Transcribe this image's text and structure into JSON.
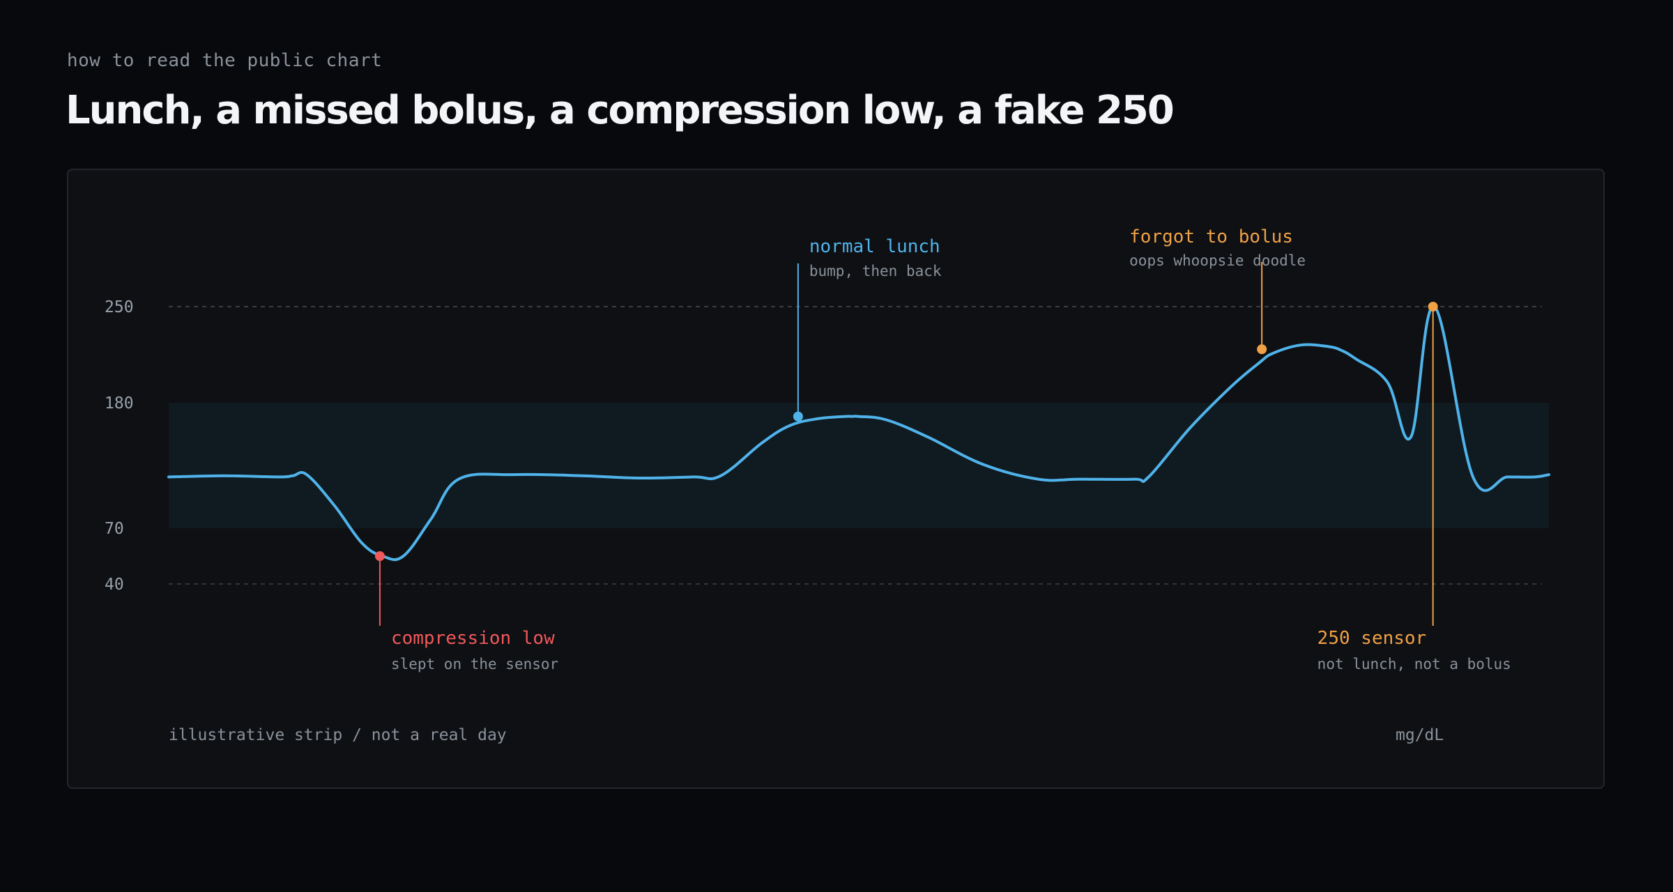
{
  "header": {
    "eyebrow": "how to read the public chart",
    "title": "Lunch, a missed bolus, a compression low, a fake 250"
  },
  "footer": {
    "note": "illustrative strip / not a real day",
    "unit": "mg/dL"
  },
  "colors": {
    "line": "#4fb3ea",
    "target_band": "#101a21",
    "low": "#f0585a",
    "high": "#f0a146",
    "muted_text": "#8b929b",
    "axis_text": "#9aa1aa",
    "guide_high": "#4a4d52",
    "guide_low": "#4a3a3c"
  },
  "chart_data": {
    "type": "line",
    "ylabel": "mg/dL",
    "y_ticks": [
      250,
      180,
      70,
      40
    ],
    "target_range": [
      70,
      180
    ],
    "guide_lines": [
      250,
      40
    ],
    "series": [
      {
        "x": [
          0,
          0.04,
          0.08,
          0.09,
          0.1,
          0.12,
          0.14,
          0.155,
          0.17,
          0.19,
          0.21,
          0.25,
          0.3,
          0.34,
          0.38,
          0.4,
          0.43,
          0.45,
          0.47,
          0.49,
          0.495,
          0.5,
          0.52,
          0.55,
          0.59,
          0.63,
          0.66,
          0.7,
          0.71,
          0.74,
          0.77,
          0.79,
          0.8,
          0.82,
          0.84,
          0.85,
          0.86,
          0.883,
          0.9,
          0.917,
          0.945,
          0.97,
          0.99,
          1.0
        ],
        "y": [
          115,
          116,
          115,
          116,
          117,
          90,
          62,
          55,
          55,
          78,
          113,
          117,
          116,
          114,
          115,
          116,
          145,
          160,
          166,
          168,
          168,
          168,
          165,
          150,
          126,
          113,
          113,
          113,
          115,
          158,
          192,
          209,
          216,
          222,
          221,
          218,
          212,
          195,
          150,
          250,
          115,
          115,
          115,
          117
        ]
      }
    ],
    "annotations": [
      {
        "label": "compression low",
        "detail": "slept on the sensor",
        "x": 0.153,
        "y": 55,
        "kind": "low"
      },
      {
        "label": "normal lunch",
        "detail": "bump, then back",
        "x": 0.456,
        "y": 168,
        "kind": "normal"
      },
      {
        "label": "forgot to bolus",
        "detail": "oops whoopsie doodle",
        "x": 0.792,
        "y": 219,
        "kind": "high"
      },
      {
        "label": "250 sensor",
        "detail": "not lunch, not a bolus",
        "x": 0.916,
        "y": 250,
        "kind": "high"
      }
    ]
  }
}
